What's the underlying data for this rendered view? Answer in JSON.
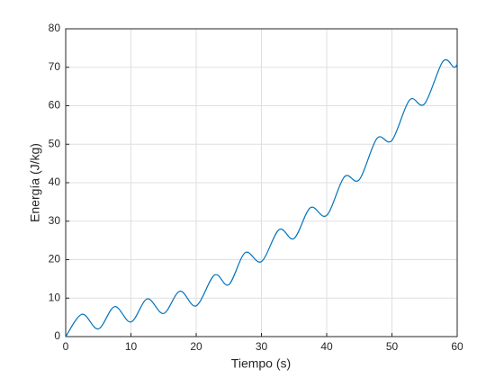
{
  "chart_data": {
    "type": "line",
    "xlabel": "Tiempo (s)",
    "ylabel": "Energía (J/kg)",
    "x": [
      0,
      2.5,
      5,
      7.5,
      10,
      12.5,
      15,
      17.5,
      20,
      22.8,
      25,
      27.5,
      30,
      32.7,
      35,
      37.5,
      40,
      42.7,
      45,
      47.7,
      50,
      52.7,
      55,
      57.8,
      59.5,
      60
    ],
    "series": [
      {
        "color": "#0072bd",
        "values": [
          0,
          5.8,
          2,
          7.8,
          3.8,
          9.8,
          6,
          11.8,
          8,
          16,
          13.5,
          21.8,
          19.5,
          27.8,
          25.5,
          33.5,
          31.5,
          41.5,
          40.8,
          51.5,
          51,
          61.5,
          60.5,
          71.5,
          70,
          70.8
        ]
      }
    ],
    "xlim": [
      0,
      60
    ],
    "ylim": [
      0,
      80
    ],
    "xticks": [
      0,
      10,
      20,
      30,
      40,
      50,
      60
    ],
    "yticks": [
      0,
      10,
      20,
      30,
      40,
      50,
      60,
      70,
      80
    ],
    "grid": true
  }
}
